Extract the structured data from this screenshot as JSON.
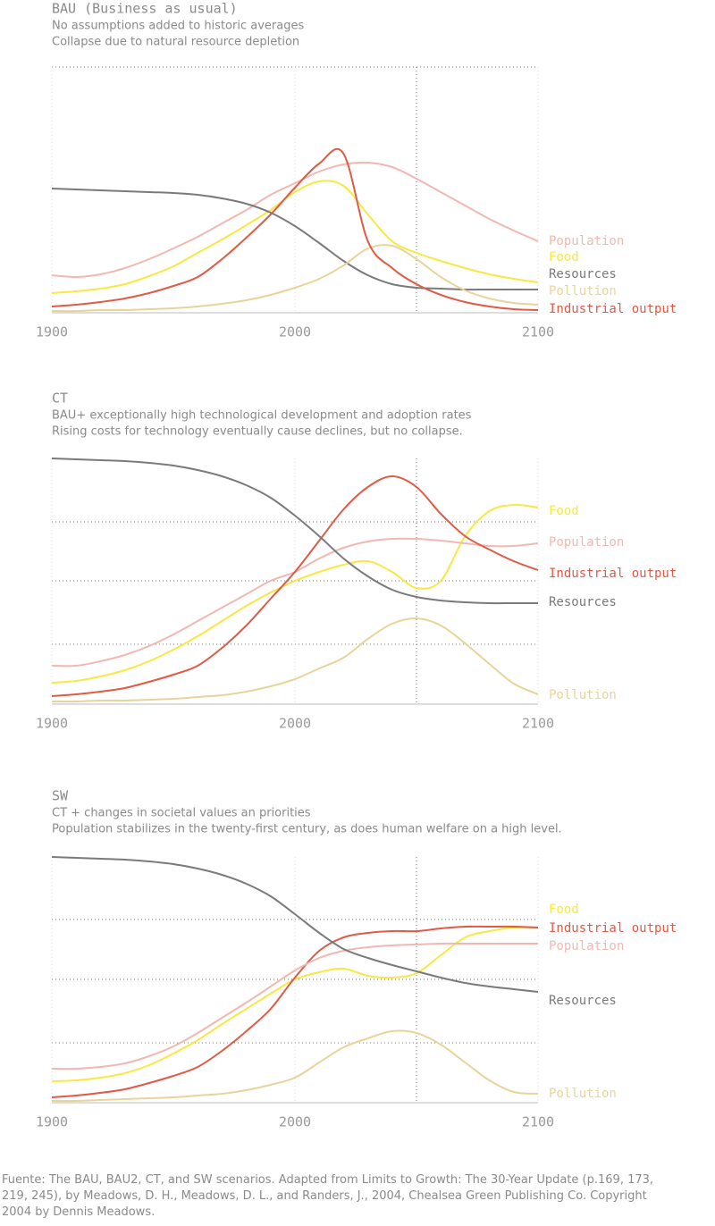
{
  "chart_data": [
    {
      "type": "line",
      "title": "BAU (Business as usual)",
      "subtitle": [
        "No assumptions added to historic averages",
        "Collapse due to natural resource depletion"
      ],
      "x": [
        1900,
        1910,
        1920,
        1930,
        1940,
        1950,
        1960,
        1970,
        1980,
        1990,
        2000,
        2010,
        2020,
        2030,
        2040,
        2050,
        2060,
        2070,
        2080,
        2090,
        2100
      ],
      "xlim": [
        1900,
        2100
      ],
      "xticks": [
        1900,
        2000,
        2100
      ],
      "ylim": [
        0,
        275
      ],
      "ygrid": [
        275
      ],
      "vline": 2050,
      "series": [
        {
          "name": "Population",
          "color": "#f0b8b0",
          "values": [
            42,
            40,
            43,
            50,
            60,
            72,
            85,
            100,
            115,
            132,
            145,
            158,
            166,
            168,
            163,
            150,
            135,
            120,
            105,
            92,
            80
          ]
        },
        {
          "name": "Food",
          "color": "#f7e843",
          "values": [
            22,
            24,
            27,
            32,
            41,
            52,
            67,
            82,
            98,
            115,
            135,
            147,
            142,
            110,
            80,
            67,
            58,
            50,
            43,
            38,
            34
          ]
        },
        {
          "name": "Resources",
          "color": "#7a7a7a",
          "values": [
            139,
            138,
            137,
            136,
            135,
            134,
            132,
            128,
            122,
            112,
            97,
            78,
            58,
            42,
            32,
            28,
            27,
            26,
            26,
            26,
            26
          ]
        },
        {
          "name": "Pollution",
          "color": "#e8d49a",
          "values": [
            2,
            2,
            3,
            3,
            4,
            5,
            7,
            10,
            14,
            20,
            28,
            38,
            53,
            72,
            75,
            60,
            40,
            25,
            16,
            11,
            9
          ]
        },
        {
          "name": "Industrial output",
          "color": "#e05a45",
          "values": [
            7,
            9,
            12,
            16,
            22,
            30,
            40,
            60,
            84,
            110,
            140,
            167,
            178,
            80,
            50,
            32,
            20,
            12,
            7,
            4,
            3
          ]
        }
      ]
    },
    {
      "type": "line",
      "title": "CT",
      "subtitle": [
        "BAU+ exceptionally high technological development and adoption rates",
        "Rising costs for technology eventually cause declines, but no collapse."
      ],
      "x": [
        1900,
        1910,
        1920,
        1930,
        1940,
        1950,
        1960,
        1970,
        1980,
        1990,
        2000,
        2010,
        2020,
        2030,
        2040,
        2050,
        2060,
        2070,
        2080,
        2090,
        2100
      ],
      "xlim": [
        1900,
        2100
      ],
      "xticks": [
        1900,
        2000,
        2100
      ],
      "ylim": [
        0,
        275
      ],
      "ygrid": [
        67,
        138,
        204
      ],
      "vline": 2050,
      "series": [
        {
          "name": "Food",
          "color": "#f7e843",
          "values": [
            24,
            26,
            31,
            38,
            48,
            61,
            76,
            93,
            110,
            125,
            138,
            148,
            156,
            160,
            148,
            130,
            138,
            188,
            216,
            223,
            220
          ]
        },
        {
          "name": "Population",
          "color": "#f0b8b0",
          "values": [
            43,
            43,
            48,
            55,
            65,
            78,
            93,
            108,
            123,
            138,
            148,
            163,
            175,
            182,
            185,
            185,
            183,
            180,
            177,
            177,
            180
          ]
        },
        {
          "name": "Industrial output",
          "color": "#e05a45",
          "values": [
            9,
            11,
            14,
            18,
            25,
            33,
            43,
            63,
            88,
            118,
            148,
            183,
            218,
            243,
            255,
            243,
            213,
            188,
            173,
            160,
            150
          ]
        },
        {
          "name": "Resources",
          "color": "#7a7a7a",
          "values": [
            275,
            274,
            273,
            272,
            270,
            267,
            262,
            255,
            245,
            231,
            211,
            188,
            163,
            143,
            128,
            120,
            116,
            114,
            113,
            113,
            113
          ]
        },
        {
          "name": "Pollution",
          "color": "#e8d49a",
          "values": [
            3,
            3,
            4,
            4,
            5,
            6,
            8,
            10,
            14,
            20,
            28,
            40,
            52,
            73,
            90,
            96,
            88,
            68,
            45,
            23,
            11
          ]
        }
      ]
    },
    {
      "type": "line",
      "title": "SW",
      "subtitle": [
        "CT + changes in societal values an priorities",
        "Population stabilizes in the twenty-first century, as does human welfare on a high level."
      ],
      "x": [
        1900,
        1910,
        1920,
        1930,
        1940,
        1950,
        1960,
        1970,
        1980,
        1990,
        2000,
        2010,
        2020,
        2030,
        2040,
        2050,
        2060,
        2070,
        2080,
        2090,
        2100
      ],
      "xlim": [
        1900,
        2100
      ],
      "xticks": [
        1900,
        2000,
        2100
      ],
      "ylim": [
        0,
        275
      ],
      "ygrid": [
        67,
        138,
        205
      ],
      "vline": 2050,
      "series": [
        {
          "name": "Food",
          "color": "#f7e843",
          "values": [
            24,
            25,
            28,
            33,
            42,
            55,
            70,
            88,
            105,
            122,
            138,
            146,
            150,
            142,
            140,
            145,
            165,
            185,
            192,
            196,
            196
          ]
        },
        {
          "name": "Industrial output",
          "color": "#e05a45",
          "values": [
            6,
            8,
            11,
            15,
            22,
            30,
            40,
            58,
            80,
            105,
            140,
            170,
            185,
            190,
            192,
            192,
            195,
            197,
            197,
            197,
            196
          ]
        },
        {
          "name": "Population",
          "color": "#f0b8b0",
          "values": [
            38,
            38,
            40,
            44,
            52,
            63,
            78,
            95,
            112,
            130,
            148,
            162,
            170,
            174,
            176,
            177,
            178,
            178,
            178,
            178,
            178
          ]
        },
        {
          "name": "Resources",
          "color": "#7a7a7a",
          "values": [
            275,
            274,
            273,
            272,
            270,
            267,
            262,
            255,
            245,
            231,
            211,
            190,
            172,
            162,
            154,
            147,
            140,
            134,
            130,
            127,
            124
          ]
        },
        {
          "name": "Pollution",
          "color": "#e8d49a",
          "values": [
            2,
            2,
            3,
            4,
            5,
            6,
            8,
            10,
            14,
            20,
            28,
            45,
            62,
            72,
            80,
            78,
            65,
            45,
            25,
            12,
            10
          ]
        }
      ]
    }
  ],
  "source": "Fuente: The BAU, BAU2, CT, and SW scenarios. Adapted from Limits to Growth: The 30-Year Update (p.169, 173, 219, 245), by Meadows, D. H., Meadows, D. L., and Randers, J., 2004, Chealsea Green Publishing Co. Copyright 2004 by Dennis Meadows."
}
